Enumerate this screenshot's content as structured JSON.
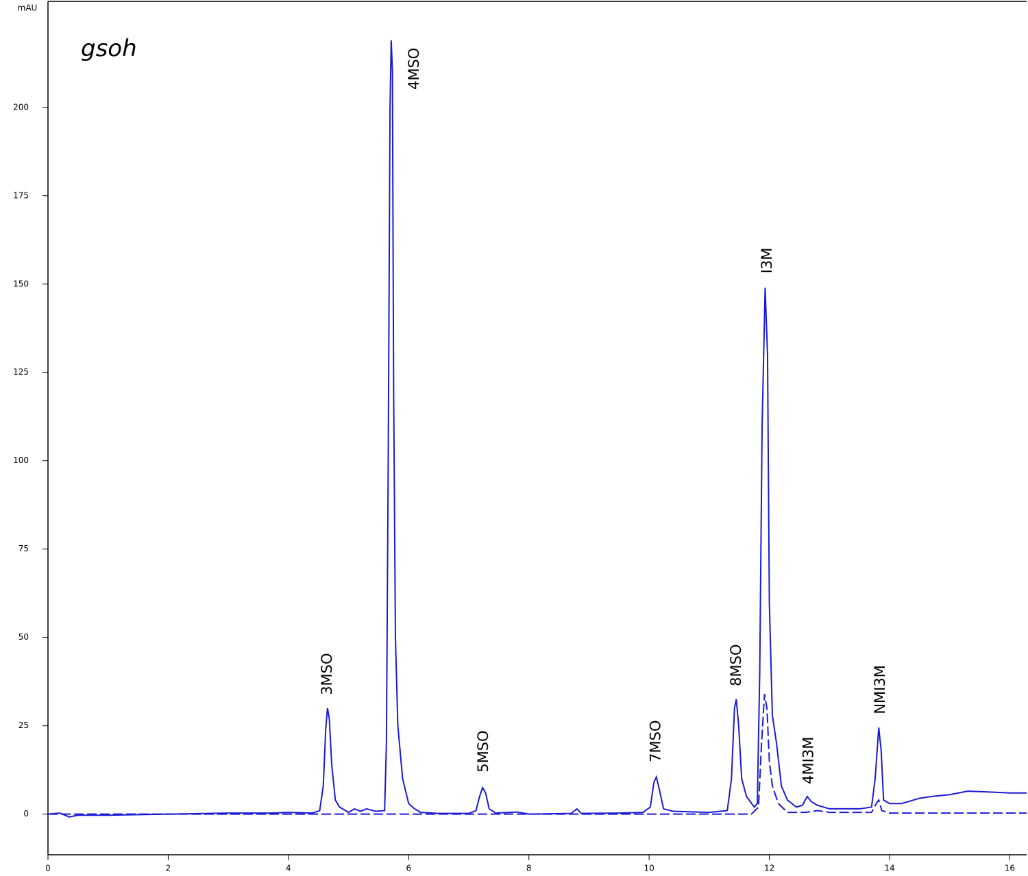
{
  "chart_data": {
    "type": "line",
    "title": "gsoh",
    "ylabel": "mAU",
    "xlim": [
      0,
      16.28
    ],
    "ylim": [
      -11.5,
      230
    ],
    "xticks": [
      0,
      2,
      4,
      6,
      8,
      10,
      12,
      14,
      16
    ],
    "yticks": [
      0,
      25,
      50,
      75,
      100,
      125,
      150,
      175,
      200
    ],
    "series": [
      {
        "color": "#1a1ad6",
        "style": "solid",
        "x": [
          0,
          0.2,
          0.35,
          0.5,
          1,
          2,
          3,
          3.7,
          4,
          4.4,
          4.52,
          4.58,
          4.62,
          4.65,
          4.68,
          4.72,
          4.78,
          4.85,
          5,
          5.1,
          5.2,
          5.3,
          5.45,
          5.6,
          5.63,
          5.66,
          5.69,
          5.71,
          5.73,
          5.75,
          5.78,
          5.82,
          5.9,
          6,
          6.1,
          6.2,
          6.5,
          7,
          7.12,
          7.18,
          7.23,
          7.28,
          7.34,
          7.45,
          7.8,
          8,
          8.7,
          8.8,
          8.87,
          9.5,
          9.9,
          10.02,
          10.08,
          10.12,
          10.17,
          10.24,
          10.4,
          11,
          11.3,
          11.37,
          11.42,
          11.45,
          11.49,
          11.54,
          11.62,
          11.75,
          11.8,
          11.84,
          11.88,
          11.93,
          11.97,
          12,
          12.05,
          12.12,
          12.2,
          12.3,
          12.45,
          12.55,
          12.63,
          12.7,
          12.8,
          12.9,
          13,
          13.5,
          13.7,
          13.76,
          13.82,
          13.86,
          13.9,
          14,
          14.2,
          14.5,
          14.7,
          15,
          15.3,
          15.6,
          16,
          16.28
        ],
        "values": [
          0,
          0.3,
          -0.8,
          -0.3,
          -0.3,
          0,
          0.3,
          0.3,
          0.5,
          0.3,
          1,
          8,
          24,
          30,
          27,
          14,
          4,
          2,
          0.5,
          1.5,
          0.8,
          1.5,
          0.8,
          1,
          20,
          100,
          200,
          219,
          210,
          120,
          50,
          25,
          10,
          3,
          1.5,
          0.5,
          0.2,
          0.2,
          1,
          5,
          7.5,
          6,
          1.5,
          0.3,
          0.6,
          0,
          0.2,
          1.5,
          0.2,
          0.3,
          0.5,
          2,
          9,
          10.5,
          7,
          1.5,
          0.8,
          0.5,
          1,
          10,
          30,
          32.5,
          25,
          10,
          5,
          2,
          3,
          40,
          110,
          149,
          130,
          60,
          28,
          20,
          8,
          4,
          2,
          2.5,
          5,
          3.5,
          2.5,
          2,
          1.5,
          1.5,
          2,
          10,
          24.5,
          18,
          4,
          3,
          3,
          4.5,
          5,
          5.5,
          6.5,
          6.3,
          6,
          6
        ]
      },
      {
        "color": "#1a1ad6",
        "style": "dashed",
        "x": [
          0,
          11.7,
          11.82,
          11.87,
          11.92,
          11.96,
          12,
          12.05,
          12.15,
          12.3,
          12.6,
          12.8,
          13,
          13.7,
          13.78,
          13.82,
          13.87,
          14,
          16.28
        ],
        "values": [
          0,
          0,
          2,
          20,
          34,
          30,
          15,
          8,
          3,
          0.5,
          0.5,
          1,
          0.5,
          0.5,
          3,
          4,
          1,
          0.3,
          0.3
        ]
      }
    ],
    "annotations": [
      {
        "text": "3MSO",
        "x": 4.65,
        "y": 33.7
      },
      {
        "text": "4MSO",
        "x": 6.1,
        "y": 205
      },
      {
        "text": "5MSO",
        "x": 7.25,
        "y": 11.8
      },
      {
        "text": "7MSO",
        "x": 10.12,
        "y": 14.7
      },
      {
        "text": "8MSO",
        "x": 11.46,
        "y": 36.2
      },
      {
        "text": "I3M",
        "x": 11.97,
        "y": 153
      },
      {
        "text": "4MI3M",
        "x": 12.66,
        "y": 8.5
      },
      {
        "text": "NMI3M",
        "x": 13.85,
        "y": 28.3
      }
    ]
  }
}
